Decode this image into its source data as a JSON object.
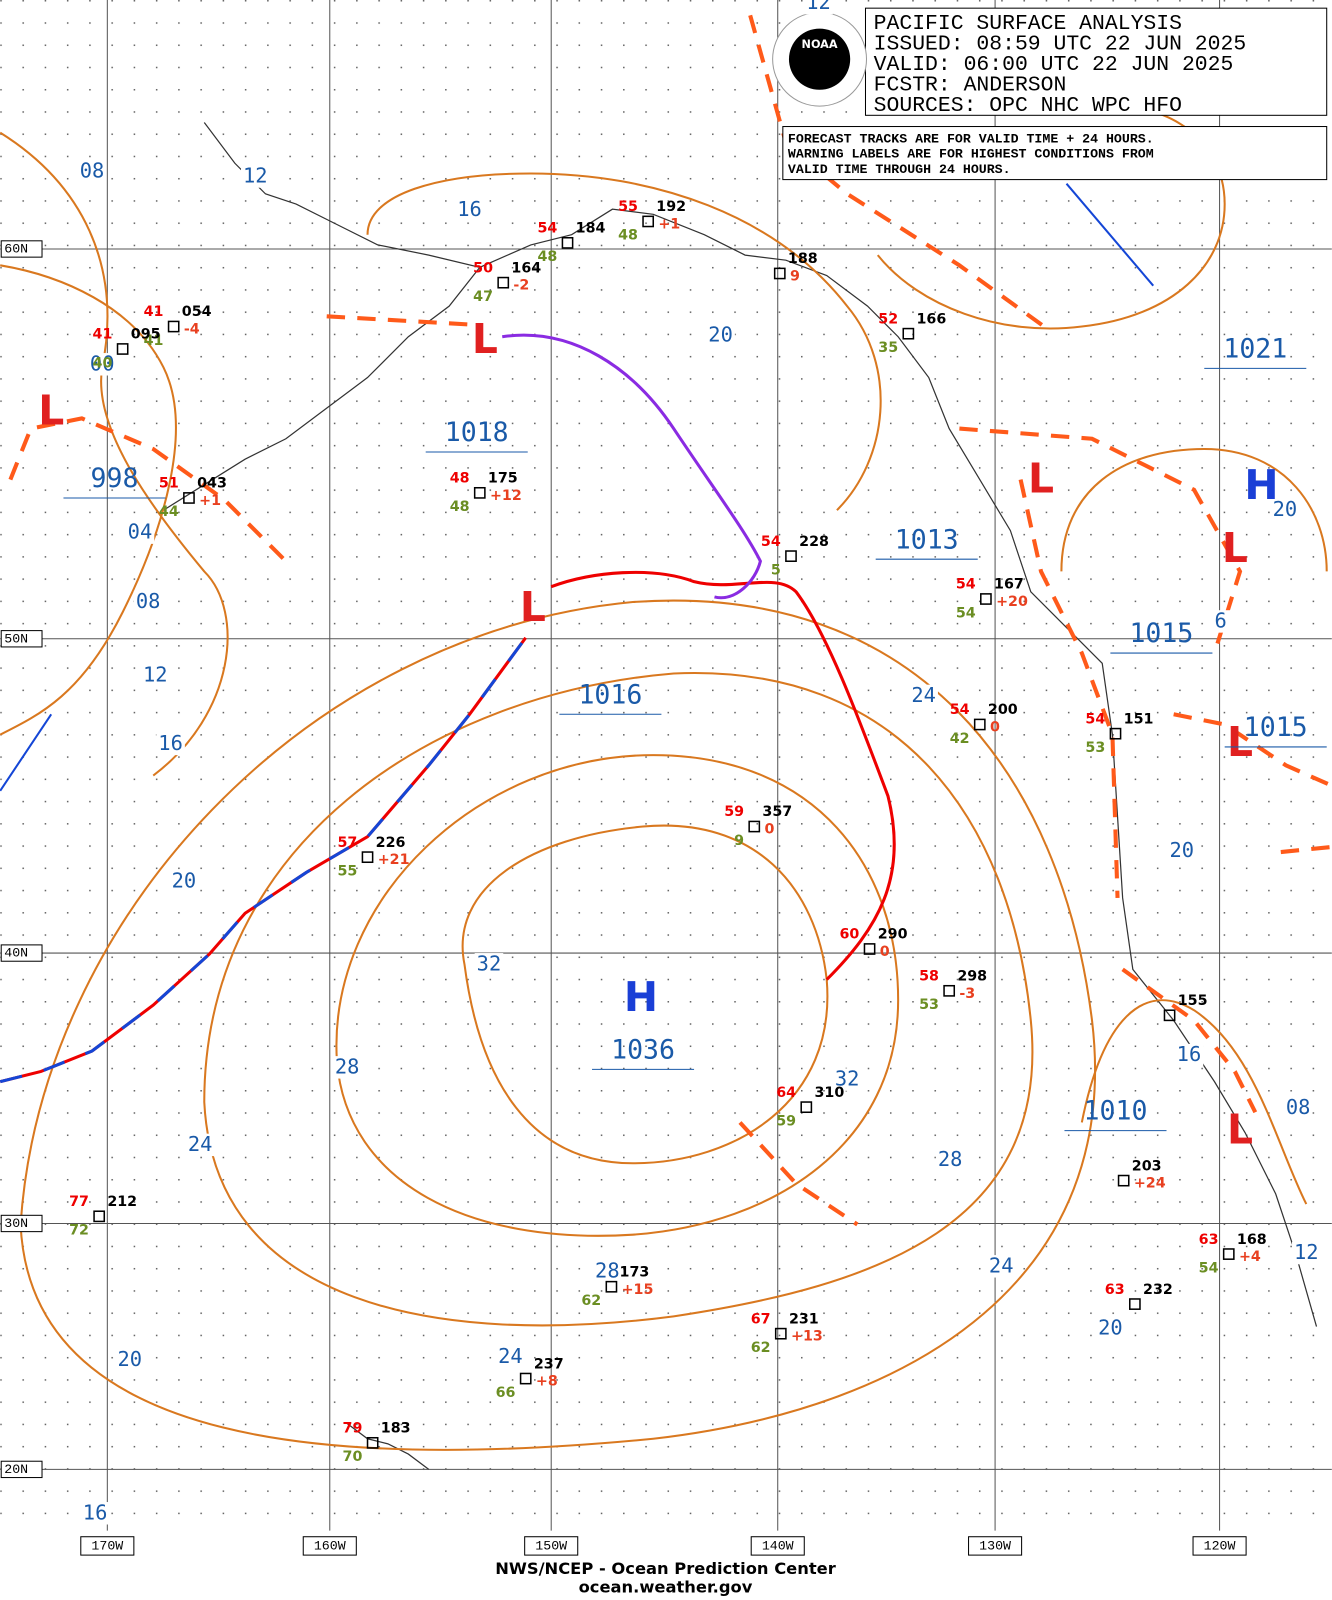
{
  "header": {
    "title": "PACIFIC SURFACE ANALYSIS",
    "issued": "ISSUED: 08:59 UTC 22 JUN 2025",
    "valid": "VALID:  06:00 UTC 22 JUN 2025",
    "forecaster": "FCSTR:  ANDERSON",
    "sources": "SOURCES: OPC NHC WPC HFO"
  },
  "note": [
    "FORECAST TRACKS ARE FOR VALID TIME + 24 HOURS.",
    "WARNING LABELS ARE FOR HIGHEST CONDITIONS FROM",
    "VALID TIME THROUGH 24 HOURS."
  ],
  "logo": "NOAA",
  "latitude_labels": [
    "60N",
    "50N",
    "40N",
    "30N",
    "20N"
  ],
  "longitude_labels": [
    "170W",
    "160W",
    "150W",
    "140W",
    "130W",
    "120W"
  ],
  "pressure_centers": [
    {
      "symbol": "H",
      "pressure": 1036
    },
    {
      "symbol": "L",
      "pressure": 998
    },
    {
      "symbol": "L",
      "pressure": 1018
    },
    {
      "symbol": "L",
      "pressure": 1016
    },
    {
      "symbol": "L",
      "pressure": 1013
    },
    {
      "symbol": "H",
      "pressure": 1021
    },
    {
      "symbol": "L",
      "pressure": 1015
    },
    {
      "symbol": "L",
      "pressure": 1015
    },
    {
      "symbol": "L",
      "pressure": 1010
    }
  ],
  "isobar_labels": [
    "08",
    "12",
    "16",
    "20",
    "00",
    "04",
    "08",
    "12",
    "16",
    "20",
    "24",
    "32",
    "28",
    "32",
    "24",
    "28",
    "24",
    "20",
    "16",
    "08",
    "12",
    "28",
    "24",
    "20",
    "20",
    "16",
    "12",
    "6",
    "20"
  ],
  "stations": [
    {
      "pressure": "054",
      "temp": 41,
      "dew": 41,
      "tendency": "-4"
    },
    {
      "pressure": "095",
      "temp": 41,
      "dew": 40
    },
    {
      "pressure": "043",
      "temp": 51,
      "dew": 44,
      "tendency": "+1"
    },
    {
      "pressure": "175",
      "temp": 48,
      "dew": 48,
      "tendency": "+12"
    },
    {
      "pressure": "164",
      "temp": 50,
      "dew": 47,
      "tendency": "-2"
    },
    {
      "pressure": "184",
      "temp": 54,
      "dew": 48
    },
    {
      "pressure": "192",
      "temp": 55,
      "dew": 48,
      "tendency": "+1"
    },
    {
      "pressure": "188",
      "tendency": "9"
    },
    {
      "pressure": "166",
      "temp": 52,
      "dew": 35
    },
    {
      "pressure": "228",
      "temp": 54,
      "dew": 5
    },
    {
      "pressure": "167",
      "temp": 54,
      "dew": 54,
      "tendency": "+20"
    },
    {
      "pressure": "200",
      "temp": 54,
      "dew": 42,
      "tendency": "0"
    },
    {
      "pressure": "151",
      "temp": 54,
      "dew": 53
    },
    {
      "pressure": "357",
      "temp": 59,
      "dew": 9,
      "tendency": "0"
    },
    {
      "pressure": "226",
      "temp": 57,
      "dew": 55,
      "tendency": "+21"
    },
    {
      "pressure": "290",
      "temp": 60,
      "tendency": "0"
    },
    {
      "pressure": "298",
      "temp": 58,
      "dew": 53,
      "tendency": "-3"
    },
    {
      "pressure": "155"
    },
    {
      "pressure": "203",
      "tendency": "+24"
    },
    {
      "pressure": "212",
      "temp": 77,
      "dew": 72
    },
    {
      "pressure": "168",
      "temp": 63,
      "dew": 54,
      "tendency": "+4"
    },
    {
      "pressure": "232",
      "temp": 63
    },
    {
      "pressure": "231",
      "temp": 67,
      "dew": 62,
      "tendency": "+13"
    },
    {
      "pressure": "237",
      "dew": 66,
      "tendency": "+8"
    },
    {
      "pressure": "183",
      "temp": 79,
      "dew": 70
    },
    {
      "pressure": "173",
      "dew": 62,
      "tendency": "+15"
    },
    {
      "pressure": "310",
      "temp": 64,
      "dew": 59
    }
  ],
  "footer": {
    "agency": "NWS/NCEP - Ocean Prediction Center",
    "website": "ocean.weather.gov"
  }
}
